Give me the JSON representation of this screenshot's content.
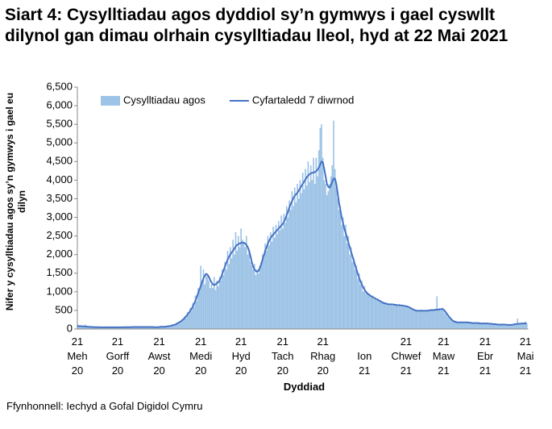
{
  "chart_data": {
    "type": "bar",
    "title": "Siart 4: Cysylltiadau agos dyddiol sy’n gymwys i gael cyswllt dilynol gan dimau olrhain cysylltiadau lleol, hyd at 22 Mai 2021",
    "y_label": "Nifer y cysylltiadau agos sy’n gymwys i gael eu dilyn",
    "x_label": "Dyddiad",
    "source": "Ffynhonnell: Iechyd a Gofal Digidol Cymru",
    "legend": "top",
    "grid": false,
    "ylim": [
      0,
      6500
    ],
    "yticks": [
      0,
      500,
      {
        "value": 1000,
        "label": "1,000"
      },
      {
        "value": 1500,
        "label": "1,500"
      },
      {
        "value": 2000,
        "label": "2,000"
      },
      {
        "value": 2500,
        "label": "2,500"
      },
      {
        "value": 3000,
        "label": "3,000"
      },
      {
        "value": 3500,
        "label": "3,500"
      },
      {
        "value": 4000,
        "label": "4,000"
      },
      {
        "value": 4500,
        "label": "4,500"
      },
      {
        "value": 5000,
        "label": "5,000"
      },
      {
        "value": 5500,
        "label": "5,500"
      },
      {
        "value": 6000,
        "label": "6,000"
      },
      {
        "value": 6500,
        "label": "6,500"
      }
    ],
    "categories": [
      "21\nMeh\n20",
      null,
      null,
      null,
      null,
      null,
      null,
      null,
      null,
      null,
      null,
      null,
      null,
      null,
      null,
      null,
      null,
      null,
      null,
      null,
      null,
      null,
      null,
      null,
      null,
      null,
      null,
      null,
      null,
      null,
      "21\nGorff\n20",
      null,
      null,
      null,
      null,
      null,
      null,
      null,
      null,
      null,
      null,
      null,
      null,
      null,
      null,
      null,
      null,
      null,
      null,
      null,
      null,
      null,
      null,
      null,
      null,
      null,
      null,
      null,
      null,
      null,
      null,
      "21\nAwst\n20",
      null,
      null,
      null,
      null,
      null,
      null,
      null,
      null,
      null,
      null,
      null,
      null,
      null,
      null,
      null,
      null,
      null,
      null,
      null,
      null,
      null,
      null,
      null,
      null,
      null,
      null,
      null,
      null,
      null,
      null,
      "21\nMedi\n20",
      null,
      null,
      null,
      null,
      null,
      null,
      null,
      null,
      null,
      null,
      null,
      null,
      null,
      null,
      null,
      null,
      null,
      null,
      null,
      null,
      null,
      null,
      null,
      null,
      null,
      null,
      null,
      null,
      null,
      "21\nHyd\n20",
      null,
      null,
      null,
      null,
      null,
      null,
      null,
      null,
      null,
      null,
      null,
      null,
      null,
      null,
      null,
      null,
      null,
      null,
      null,
      null,
      null,
      null,
      null,
      null,
      null,
      null,
      null,
      null,
      null,
      null,
      "21\nTach\n20",
      null,
      null,
      null,
      null,
      null,
      null,
      null,
      null,
      null,
      null,
      null,
      null,
      null,
      null,
      null,
      null,
      null,
      null,
      null,
      null,
      null,
      null,
      null,
      null,
      null,
      null,
      null,
      null,
      null,
      "21\nRhag\n20",
      null,
      null,
      null,
      null,
      null,
      null,
      null,
      null,
      null,
      null,
      null,
      null,
      null,
      null,
      null,
      null,
      null,
      null,
      null,
      null,
      null,
      null,
      null,
      null,
      null,
      null,
      null,
      null,
      null,
      null,
      "Ion\n21",
      null,
      null,
      null,
      null,
      null,
      null,
      null,
      null,
      null,
      null,
      null,
      null,
      null,
      null,
      null,
      null,
      null,
      null,
      null,
      null,
      null,
      null,
      null,
      null,
      null,
      null,
      null,
      null,
      null,
      null,
      "21\nChwef\n21",
      null,
      null,
      null,
      null,
      null,
      null,
      null,
      null,
      null,
      null,
      null,
      null,
      null,
      null,
      null,
      null,
      null,
      null,
      null,
      null,
      null,
      null,
      null,
      null,
      null,
      null,
      null,
      "21\nMaw\n21",
      null,
      null,
      null,
      null,
      null,
      null,
      null,
      null,
      null,
      null,
      null,
      null,
      null,
      null,
      null,
      null,
      null,
      null,
      null,
      null,
      null,
      null,
      null,
      null,
      null,
      null,
      null,
      null,
      null,
      null,
      "21\nEbr\n21",
      null,
      null,
      null,
      null,
      null,
      null,
      null,
      null,
      null,
      null,
      null,
      null,
      null,
      null,
      null,
      null,
      null,
      null,
      null,
      null,
      null,
      null,
      null,
      null,
      null,
      null,
      null,
      null,
      null,
      "21\nMai\n21",
      null
    ],
    "series": [
      {
        "name": "Cysylltiadau agos",
        "type": "bar",
        "color": "#9dc3e6",
        "values": [
          110,
          70,
          90,
          60,
          80,
          50,
          120,
          60,
          50,
          70,
          60,
          40,
          70,
          50,
          40,
          60,
          50,
          40,
          50,
          45,
          40,
          50,
          45,
          55,
          35,
          45,
          50,
          40,
          55,
          40,
          50,
          40,
          45,
          50,
          60,
          45,
          55,
          50,
          40,
          55,
          60,
          50,
          55,
          60,
          45,
          60,
          55,
          70,
          50,
          55,
          60,
          45,
          50,
          65,
          55,
          50,
          60,
          45,
          55,
          50,
          55,
          60,
          50,
          70,
          55,
          65,
          80,
          60,
          90,
          70,
          110,
          90,
          130,
          100,
          170,
          140,
          210,
          170,
          270,
          230,
          340,
          300,
          450,
          380,
          560,
          480,
          700,
          600,
          900,
          750,
          1100,
          1000,
          1700,
          1300,
          1600,
          1200,
          1500,
          1400,
          1300,
          1100,
          1200,
          1100,
          1400,
          1050,
          1300,
          1150,
          1400,
          1300,
          1600,
          1450,
          1800,
          1600,
          2100,
          1750,
          2200,
          1900,
          2400,
          2000,
          2600,
          2100,
          2500,
          2200,
          2700,
          2400,
          2300,
          2200,
          2500,
          2000,
          2150,
          1800,
          1700,
          1600,
          1750,
          1450,
          1600,
          1500,
          1700,
          1800,
          2000,
          1900,
          2300,
          2100,
          2500,
          2250,
          2600,
          2350,
          2750,
          2450,
          2800,
          2550,
          2900,
          2650,
          3050,
          2700,
          3100,
          2850,
          3300,
          3000,
          3450,
          3200,
          3700,
          3300,
          3800,
          3400,
          3900,
          3500,
          4000,
          3650,
          4200,
          3750,
          4300,
          3850,
          4500,
          3950,
          4400,
          4000,
          4600,
          3900,
          4600,
          4100,
          4800,
          5400,
          5500,
          4600,
          4000,
          3900,
          3600,
          3700,
          3900,
          4100,
          4400,
          5600,
          4300,
          3800,
          3500,
          3200,
          3300,
          2800,
          3000,
          2500,
          2800,
          2300,
          2500,
          2000,
          2200,
          1800,
          1900,
          1600,
          1700,
          1350,
          1500,
          1200,
          1300,
          1000,
          1150,
          950,
          1000,
          900,
          950,
          850,
          900,
          800,
          850,
          760,
          820,
          720,
          780,
          690,
          740,
          660,
          720,
          640,
          700,
          630,
          690,
          620,
          680,
          620,
          670,
          610,
          670,
          600,
          660,
          590,
          600,
          580,
          630,
          560,
          590,
          520,
          560,
          480,
          530,
          470,
          510,
          470,
          520,
          470,
          500,
          480,
          510,
          470,
          520,
          480,
          540,
          490,
          530,
          500,
          880,
          500,
          560,
          500,
          570,
          480,
          420,
          400,
          330,
          300,
          260,
          230,
          240,
          190,
          210,
          170,
          190,
          170,
          200,
          170,
          190,
          170,
          190,
          170,
          180,
          160,
          170,
          150,
          170,
          150,
          170,
          150,
          160,
          140,
          160,
          140,
          160,
          140,
          160,
          130,
          150,
          130,
          140,
          120,
          140,
          110,
          130,
          110,
          130,
          110,
          130,
          110,
          120,
          100,
          120,
          100,
          120,
          130,
          140,
          120,
          280,
          130,
          150,
          140,
          160,
          140,
          200,
          130
        ]
      },
      {
        "name": "Cyfartaledd 7 diwrnod",
        "type": "line",
        "color": "#4472c4",
        "values": [
          80,
          80,
          75,
          75,
          70,
          70,
          65,
          65,
          60,
          60,
          55,
          55,
          55,
          50,
          50,
          50,
          50,
          45,
          45,
          45,
          45,
          45,
          45,
          45,
          45,
          45,
          45,
          45,
          45,
          45,
          45,
          45,
          45,
          45,
          50,
          50,
          50,
          50,
          50,
          50,
          50,
          55,
          55,
          55,
          55,
          55,
          55,
          55,
          55,
          55,
          55,
          55,
          55,
          55,
          55,
          55,
          55,
          50,
          50,
          50,
          50,
          55,
          60,
          60,
          60,
          60,
          65,
          70,
          75,
          80,
          90,
          100,
          110,
          120,
          140,
          160,
          180,
          200,
          230,
          260,
          300,
          340,
          380,
          430,
          480,
          540,
          600,
          680,
          760,
          860,
          960,
          1060,
          1160,
          1260,
          1360,
          1440,
          1480,
          1460,
          1400,
          1320,
          1250,
          1200,
          1180,
          1200,
          1230,
          1260,
          1300,
          1380,
          1480,
          1580,
          1680,
          1780,
          1860,
          1940,
          2000,
          2060,
          2100,
          2160,
          2220,
          2260,
          2280,
          2300,
          2310,
          2320,
          2320,
          2300,
          2260,
          2200,
          2100,
          1960,
          1800,
          1680,
          1600,
          1560,
          1540,
          1560,
          1640,
          1740,
          1860,
          1980,
          2100,
          2200,
          2300,
          2380,
          2440,
          2500,
          2540,
          2580,
          2620,
          2660,
          2700,
          2740,
          2780,
          2820,
          2880,
          2960,
          3060,
          3160,
          3260,
          3360,
          3440,
          3520,
          3580,
          3620,
          3660,
          3720,
          3780,
          3840,
          3900,
          3960,
          4020,
          4080,
          4120,
          4160,
          4180,
          4200,
          4200,
          4220,
          4240,
          4280,
          4340,
          4420,
          4500,
          4480,
          4300,
          4100,
          3900,
          3820,
          3800,
          3860,
          3960,
          4040,
          4040,
          3900,
          3650,
          3400,
          3200,
          3000,
          2850,
          2700,
          2580,
          2450,
          2320,
          2200,
          2080,
          1960,
          1840,
          1720,
          1600,
          1480,
          1380,
          1280,
          1200,
          1120,
          1060,
          1000,
          960,
          930,
          900,
          880,
          860,
          840,
          820,
          800,
          780,
          760,
          740,
          720,
          700,
          690,
          680,
          670,
          660,
          660,
          660,
          660,
          650,
          650,
          640,
          640,
          640,
          630,
          630,
          620,
          620,
          610,
          600,
          590,
          570,
          550,
          530,
          510,
          500,
          490,
          490,
          490,
          490,
          490,
          490,
          490,
          490,
          490,
          500,
          500,
          510,
          510,
          510,
          520,
          520,
          520,
          530,
          530,
          540,
          520,
          480,
          430,
          380,
          330,
          290,
          250,
          220,
          200,
          190,
          180,
          180,
          180,
          180,
          180,
          180,
          180,
          180,
          180,
          170,
          170,
          160,
          160,
          160,
          160,
          160,
          160,
          150,
          150,
          150,
          150,
          150,
          150,
          150,
          140,
          140,
          140,
          130,
          130,
          130,
          120,
          120,
          120,
          120,
          120,
          120,
          120,
          110,
          110,
          110,
          110,
          110,
          120,
          130,
          130,
          140,
          140,
          140,
          150,
          150,
          150,
          150,
          140
        ]
      }
    ]
  }
}
